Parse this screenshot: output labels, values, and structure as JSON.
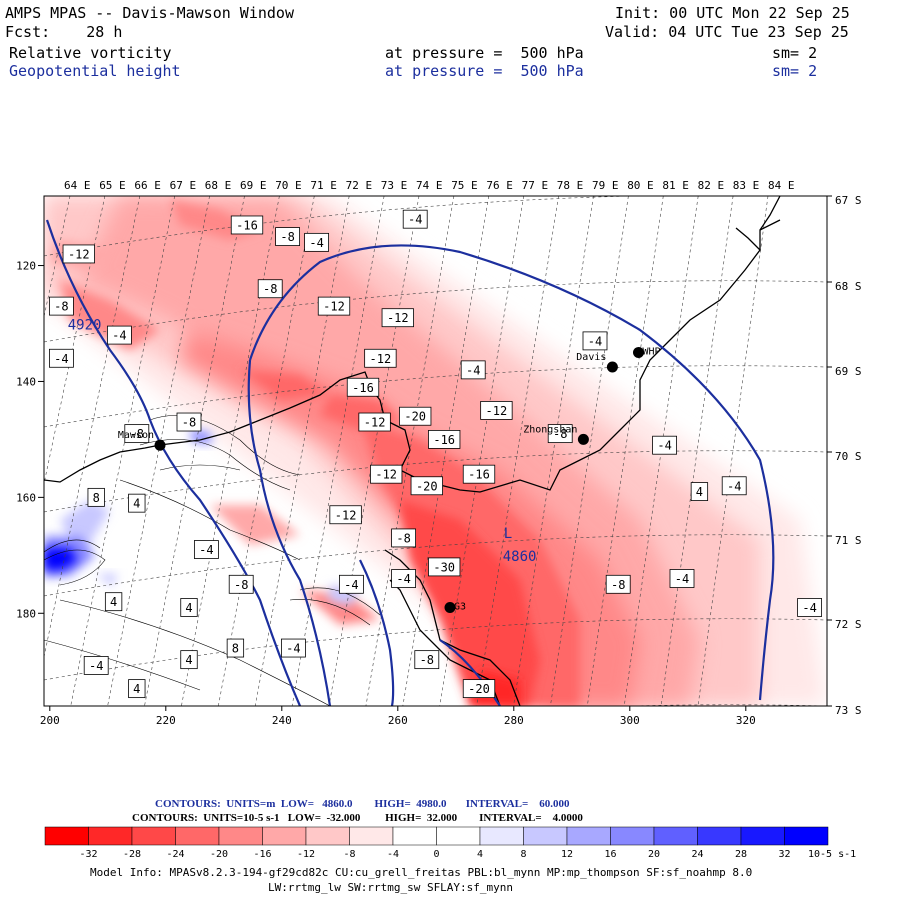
{
  "header": {
    "title": "AMPS MPAS -- Davis-Mawson Window",
    "init": "Init: 00 UTC Mon 22 Sep 25",
    "fcst": "Fcst:    28 h",
    "valid": "Valid: 04 UTC Tue 23 Sep 25",
    "field1": "Relative vorticity",
    "field1_level": "at pressure =  500 hPa",
    "field1_sm": "sm= 2",
    "field2": "Geopotential height",
    "field2_level": "at pressure =  500 hPa",
    "field2_sm": "sm= 2"
  },
  "map": {
    "lon_labels": [
      "64 E",
      "65 E",
      "66 E",
      "67 E",
      "68 E",
      "69 E",
      "70 E",
      "71 E",
      "72 E",
      "73 E",
      "74 E",
      "75 E",
      "76 E",
      "77 E",
      "78 E",
      "79 E",
      "80 E",
      "81 E",
      "82 E",
      "83 E",
      "84 E"
    ],
    "lat_labels": [
      "67 S",
      "68 S",
      "69 S",
      "70 S",
      "71 S",
      "72 S",
      "73 S"
    ],
    "y_ticks": [
      "120",
      "140",
      "160",
      "180"
    ],
    "x_ticks": [
      "200",
      "220",
      "240",
      "260",
      "280",
      "300",
      "320"
    ],
    "stations": [
      {
        "name": "Davis",
        "gx": 297,
        "gy": 137.5
      },
      {
        "name": "WHP",
        "gx": 301.5,
        "gy": 135
      },
      {
        "name": "Zhongshan",
        "gx": 292,
        "gy": 150
      },
      {
        "name": "Mawson",
        "gx": 219,
        "gy": 151
      },
      {
        "name": "G3",
        "gx": 269,
        "gy": 179
      }
    ],
    "height_labels": [
      {
        "text": "4920",
        "gx": 206,
        "gy": 131
      },
      {
        "text": "4860",
        "gx": 281,
        "gy": 171
      }
    ],
    "low_marker": {
      "text": "L",
      "gx": 279,
      "gy": 167
    },
    "vort_labels": [
      {
        "text": "-16",
        "gx": 234,
        "gy": 113
      },
      {
        "text": "-8",
        "gx": 241,
        "gy": 115
      },
      {
        "text": "-4",
        "gx": 246,
        "gy": 116
      },
      {
        "text": "-4",
        "gx": 263,
        "gy": 112
      },
      {
        "text": "-12",
        "gx": 205,
        "gy": 118
      },
      {
        "text": "-8",
        "gx": 238,
        "gy": 124
      },
      {
        "text": "-12",
        "gx": 249,
        "gy": 127
      },
      {
        "text": "-12",
        "gx": 260,
        "gy": 129
      },
      {
        "text": "-8",
        "gx": 202,
        "gy": 127
      },
      {
        "text": "-4",
        "gx": 212,
        "gy": 132
      },
      {
        "text": "-4",
        "gx": 202,
        "gy": 136
      },
      {
        "text": "-12",
        "gx": 257,
        "gy": 136
      },
      {
        "text": "-16",
        "gx": 254,
        "gy": 141
      },
      {
        "text": "-4",
        "gx": 273,
        "gy": 138
      },
      {
        "text": "-4",
        "gx": 294,
        "gy": 133
      },
      {
        "text": "-8",
        "gx": 224,
        "gy": 147
      },
      {
        "text": "-12",
        "gx": 256,
        "gy": 147
      },
      {
        "text": "-20",
        "gx": 263,
        "gy": 146
      },
      {
        "text": "-12",
        "gx": 277,
        "gy": 145
      },
      {
        "text": "-16",
        "gx": 268,
        "gy": 150
      },
      {
        "text": "-8",
        "gx": 288,
        "gy": 149
      },
      {
        "text": "-4",
        "gx": 306,
        "gy": 151
      },
      {
        "text": "-8",
        "gx": 215,
        "gy": 149
      },
      {
        "text": "-16",
        "gx": 274,
        "gy": 156
      },
      {
        "text": "-12",
        "gx": 258,
        "gy": 156
      },
      {
        "text": "-20",
        "gx": 265,
        "gy": 158
      },
      {
        "text": "4",
        "gx": 312,
        "gy": 159
      },
      {
        "text": "-4",
        "gx": 318,
        "gy": 158
      },
      {
        "text": "8",
        "gx": 208,
        "gy": 160
      },
      {
        "text": "4",
        "gx": 215,
        "gy": 161
      },
      {
        "text": "-12",
        "gx": 251,
        "gy": 163
      },
      {
        "text": "-8",
        "gx": 261,
        "gy": 167
      },
      {
        "text": "-4",
        "gx": 227,
        "gy": 169
      },
      {
        "text": "-4",
        "gx": 261,
        "gy": 174
      },
      {
        "text": "-30",
        "gx": 268,
        "gy": 172
      },
      {
        "text": "-8",
        "gx": 298,
        "gy": 175
      },
      {
        "text": "-4",
        "gx": 309,
        "gy": 174
      },
      {
        "text": "-8",
        "gx": 233,
        "gy": 175
      },
      {
        "text": "-4",
        "gx": 252,
        "gy": 175
      },
      {
        "text": "4",
        "gx": 211,
        "gy": 178
      },
      {
        "text": "4",
        "gx": 224,
        "gy": 179
      },
      {
        "text": "-4",
        "gx": 331,
        "gy": 179
      },
      {
        "text": "8",
        "gx": 232,
        "gy": 186
      },
      {
        "text": "-4",
        "gx": 242,
        "gy": 186
      },
      {
        "text": "4",
        "gx": 224,
        "gy": 188
      },
      {
        "text": "-4",
        "gx": 208,
        "gy": 189
      },
      {
        "text": "-8",
        "gx": 265,
        "gy": 188
      },
      {
        "text": "4",
        "gx": 215,
        "gy": 193
      },
      {
        "text": "-20",
        "gx": 274,
        "gy": 193
      }
    ]
  },
  "chart_data": {
    "type": "heatmap",
    "fields": [
      {
        "name": "Relative vorticity",
        "level": "500 hPa",
        "units": "10^-5 s^-1",
        "low": -32.0,
        "high": 32.0,
        "interval": 4.0,
        "display": "filled contours"
      },
      {
        "name": "Geopotential height",
        "level": "500 hPa",
        "units": "m",
        "low": 4860.0,
        "high": 4980.0,
        "interval": 60.0,
        "display": "contour lines"
      }
    ],
    "xlim": [
      199,
      334
    ],
    "ylim": [
      108,
      196
    ],
    "colorbar": {
      "levels": [
        "-32",
        "-28",
        "-24",
        "-20",
        "-16",
        "-12",
        "-8",
        "-4",
        "0",
        "4",
        "8",
        "12",
        "16",
        "20",
        "24",
        "28",
        "32"
      ],
      "colors": [
        "#ff0000",
        "#ff2828",
        "#ff4848",
        "#ff6868",
        "#ff8888",
        "#ffa8a8",
        "#ffc8c8",
        "#ffe8e8",
        "#ffffff",
        "#ffffff",
        "#e8e8ff",
        "#c8c8ff",
        "#a8a8ff",
        "#8888ff",
        "#6060ff",
        "#3838ff",
        "#0000ff"
      ],
      "unit_label": "10-5 s-1"
    }
  },
  "contour_info": {
    "line1": "CONTOURS:  UNITS=m  LOW=   4860.0        HIGH=  4980.0       INTERVAL=    60.000",
    "line2": "CONTOURS:  UNITS=10-5 s-1   LOW=  -32.000         HIGH=  32.000        INTERVAL=    4.0000"
  },
  "model_info": {
    "line1": "Model Info: MPASv8.2.3-194-gf29cd82c CU:cu_grell_freitas PBL:bl_mynn MP:mp_thompson SF:sf_noahmp 8.0",
    "line2": "LW:rrtmg_lw SW:rrtmg_sw SFLAY:sf_mynn"
  },
  "colors": {
    "height_contour": "#1c2f9e",
    "coast": "#000000",
    "grid": "#444444"
  }
}
